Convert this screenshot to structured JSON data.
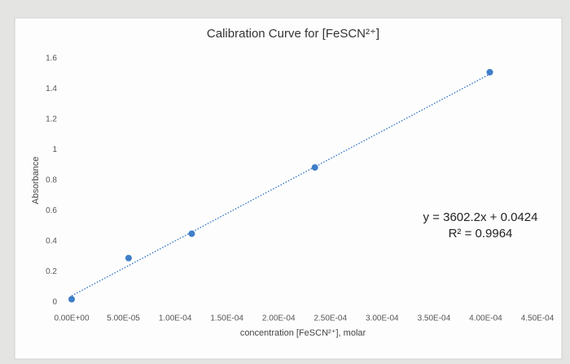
{
  "chart_data": {
    "type": "scatter",
    "title": "Calibration Curve for [FeSCN²⁺]",
    "x_label": "concentration [FeSCN²⁺], molar",
    "y_label": "Absorbance",
    "x": [
      0,
      5.5e-05,
      0.000116,
      0.000235,
      0.000404
    ],
    "values": [
      0.02,
      0.29,
      0.45,
      0.885,
      1.51
    ],
    "color": "#3f7fc8",
    "trendline": {
      "slope": 3602.2,
      "intercept": 0.0424,
      "color": "#3f7fc8",
      "style": "dotted"
    },
    "annotations": [
      "y = 3602.2x + 0.0424",
      "R² = 0.9964"
    ],
    "xlim": [
      0,
      0.00045
    ],
    "ylim": [
      0,
      1.6
    ],
    "xticks": [
      {
        "value": 0,
        "label": "0.00E+00"
      },
      {
        "value": 5e-05,
        "label": "5.00E-05"
      },
      {
        "value": 0.0001,
        "label": "1.00E-04"
      },
      {
        "value": 0.00015,
        "label": "1.50E-04"
      },
      {
        "value": 0.0002,
        "label": "2.00E-04"
      },
      {
        "value": 0.00025,
        "label": "2.50E-04"
      },
      {
        "value": 0.0003,
        "label": "3.00E-04"
      },
      {
        "value": 0.00035,
        "label": "3.50E-04"
      },
      {
        "value": 0.0004,
        "label": "4.00E-04"
      },
      {
        "value": 0.00045,
        "label": "4.50E-04"
      }
    ],
    "yticks": [
      0,
      0.2,
      0.4,
      0.6,
      0.8,
      1,
      1.2,
      1.4,
      1.6
    ],
    "grid": false
  }
}
